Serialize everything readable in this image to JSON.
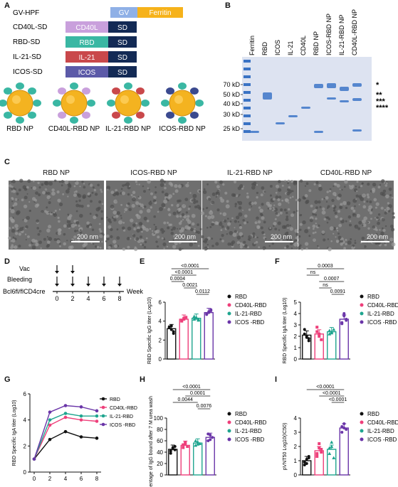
{
  "panel_labels": {
    "a": "A",
    "b": "B",
    "c": "C",
    "d": "D",
    "e": "E",
    "f": "F",
    "g": "G",
    "h": "H",
    "i": "I"
  },
  "constructs": [
    {
      "label": "GV-HPF",
      "segments": [
        {
          "text": "GV",
          "color": "#8fb0e6"
        },
        {
          "text": "Ferritin",
          "color": "#f6b21a"
        }
      ]
    },
    {
      "label": "CD40L-SD",
      "segments": [
        {
          "text": "CD40L",
          "color": "#c9a0dc"
        },
        {
          "text": "SD",
          "color": "#132a55"
        }
      ]
    },
    {
      "label": "RBD-SD",
      "segments": [
        {
          "text": "RBD",
          "color": "#3ab7a3"
        },
        {
          "text": "SD",
          "color": "#132a55"
        }
      ]
    },
    {
      "label": "IL-21-SD",
      "segments": [
        {
          "text": "IL-21",
          "color": "#c9484b"
        },
        {
          "text": "SD",
          "color": "#132a55"
        }
      ]
    },
    {
      "label": "ICOS-SD",
      "segments": [
        {
          "text": "ICOS",
          "color": "#5c5aa8"
        },
        {
          "text": "SD",
          "color": "#132a55"
        }
      ]
    }
  ],
  "nanoparticles": [
    {
      "label": "RBD NP",
      "petal_a": "#3ab7a3",
      "petal_b": "#3ab7a3"
    },
    {
      "label": "CD40L-RBD NP",
      "petal_a": "#3ab7a3",
      "petal_b": "#c9a0dc"
    },
    {
      "label": "IL-21-RBD NP",
      "petal_a": "#3ab7a3",
      "petal_b": "#c9484b"
    },
    {
      "label": "ICOS-RBD NP",
      "petal_a": "#3ab7a3",
      "petal_b": "#3b4a8f"
    }
  ],
  "gel": {
    "lanes": [
      "Ferritin",
      "RBD",
      "ICOS",
      "IL-21",
      "CD40L",
      "RBD NP",
      "ICOS-RBD NP",
      "IL-21-RBD NP",
      "CD40L-RBD NP"
    ],
    "markers": [
      "70 kD",
      "50 kD",
      "40 kD",
      "30 kD",
      "25 kD"
    ],
    "stars": [
      "*",
      "**",
      "***",
      "****"
    ]
  },
  "micrographs": [
    {
      "title": "RBD NP",
      "scale": "200 nm"
    },
    {
      "title": "ICOS-RBD NP",
      "scale": "200 nm"
    },
    {
      "title": "IL-21-RBD NP",
      "scale": "200 nm"
    },
    {
      "title": "CD40L-RBD NP",
      "scale": "200 nm"
    }
  ],
  "schedule": {
    "vac": "Vac",
    "bleeding": "Bleeding",
    "mouse": "Bcl6fl/flCD4cre",
    "week": "Week",
    "ticks": [
      "0",
      "2",
      "4",
      "6",
      "8"
    ],
    "vac_weeks": [
      0,
      2
    ],
    "bleed_weeks": [
      0,
      2,
      4,
      6,
      8
    ]
  },
  "legend_groups": [
    "RBD",
    "CD40L-RBD",
    "IL-21-RBD",
    "ICOS -RBD"
  ],
  "group_colors": [
    "#111111",
    "#ee3f7a",
    "#1fa58f",
    "#6a35a8"
  ],
  "chart_data": [
    {
      "panel": "E",
      "type": "bar",
      "ylabel": "RBD Specific IgG titer (Log10)",
      "ylim": [
        0,
        6
      ],
      "yticks": [
        0,
        2,
        4,
        6
      ],
      "categories": [
        "RBD",
        "CD40L-RBD",
        "IL-21-RBD",
        "ICOS -RBD"
      ],
      "values": [
        3.2,
        4.2,
        4.3,
        4.9
      ],
      "points": [
        [
          3.4,
          3.1,
          2.7,
          3.3,
          3.5,
          2.9
        ],
        [
          4.0,
          4.2,
          4.4,
          4.1,
          4.3
        ],
        [
          4.2,
          4.4,
          4.1,
          4.5,
          4.3,
          4.2
        ],
        [
          4.8,
          5.0,
          5.2,
          4.7,
          4.9,
          5.1
        ]
      ],
      "comparisons": [
        {
          "from": 0,
          "to": 3,
          "p": "<0.0001"
        },
        {
          "from": 0,
          "to": 2,
          "p": "<0.0001"
        },
        {
          "from": 0,
          "to": 1,
          "p": "0.0004"
        },
        {
          "from": 1,
          "to": 2,
          "p": "0.0021"
        },
        {
          "from": 2,
          "to": 3,
          "p": "0.0112"
        }
      ]
    },
    {
      "panel": "F",
      "type": "bar",
      "ylabel": "RBD Specific IgA titer (Log10)",
      "ylim": [
        0,
        5
      ],
      "yticks": [
        0,
        1,
        2,
        3,
        4,
        5
      ],
      "categories": [
        "RBD",
        "CD40L-RBD",
        "IL-21-RBD",
        "ICOS -RBD"
      ],
      "values": [
        2.1,
        2.2,
        2.4,
        3.5
      ],
      "points": [
        [
          2.6,
          1.9,
          1.6,
          2.2,
          2.0,
          1.8
        ],
        [
          2.8,
          2.2,
          1.7,
          2.4,
          2.0
        ],
        [
          2.5,
          2.3,
          2.6,
          2.2,
          2.4
        ],
        [
          3.2,
          4.0,
          3.5,
          3.1,
          3.8,
          3.4
        ]
      ],
      "comparisons": [
        {
          "from": 0,
          "to": 3,
          "p": "0.0003"
        },
        {
          "from": 0,
          "to": 1,
          "p": "ns"
        },
        {
          "from": 1,
          "to": 3,
          "p": "0.0007"
        },
        {
          "from": 1,
          "to": 2,
          "p": "ns"
        },
        {
          "from": 2,
          "to": 3,
          "p": "0.0091"
        }
      ]
    },
    {
      "panel": "G",
      "type": "line",
      "ylabel": "RBD Specific IgA titer (Log10)",
      "ylim": [
        0,
        6
      ],
      "yticks": [
        0,
        2,
        4,
        6
      ],
      "xticks": [
        0,
        2,
        4,
        6,
        8
      ],
      "x": [
        0,
        2,
        4,
        6,
        8
      ],
      "series": [
        {
          "name": "RBD",
          "values": [
            1.0,
            2.5,
            3.1,
            2.7,
            2.6
          ]
        },
        {
          "name": "CD40L-RBD",
          "values": [
            1.0,
            3.6,
            4.2,
            4.0,
            3.9
          ]
        },
        {
          "name": "IL-21-RBD",
          "values": [
            1.0,
            4.0,
            4.5,
            4.3,
            4.3
          ]
        },
        {
          "name": "ICOS -RBD",
          "values": [
            1.0,
            4.6,
            5.1,
            5.0,
            4.7
          ]
        }
      ]
    },
    {
      "panel": "H",
      "type": "bar",
      "ylabel": "Percentage of IgG bound after 7 M urea wash",
      "ylim": [
        0,
        100
      ],
      "yticks": [
        0,
        20,
        40,
        60,
        80,
        100
      ],
      "categories": [
        "RBD",
        "CD40L-RBD",
        "IL-21-RBD",
        "ICOS -RBD"
      ],
      "values": [
        45,
        52,
        56,
        66
      ],
      "points": [
        [
          38,
          46,
          50,
          42,
          48,
          44
        ],
        [
          48,
          55,
          50,
          53,
          57
        ],
        [
          52,
          58,
          55,
          60,
          54
        ],
        [
          60,
          70,
          66,
          72,
          62
        ]
      ],
      "comparisons": [
        {
          "from": 0,
          "to": 3,
          "p": "<0.0001"
        },
        {
          "from": 1,
          "to": 3,
          "p": "0.0001"
        },
        {
          "from": 0,
          "to": 2,
          "p": "0.0044"
        },
        {
          "from": 2,
          "to": 3,
          "p": "0.0076"
        }
      ]
    },
    {
      "panel": "I",
      "type": "bar",
      "ylabel": "pVNT50 Log10(IC50)",
      "ylim": [
        0,
        4
      ],
      "yticks": [
        0,
        1,
        2,
        3,
        4
      ],
      "categories": [
        "RBD",
        "CD40L-RBD",
        "IL-21-RBD",
        "ICOS -RBD"
      ],
      "values": [
        1.0,
        1.7,
        1.8,
        3.3
      ],
      "points": [
        [
          0.7,
          1.1,
          1.3,
          0.9,
          0.8,
          1.2
        ],
        [
          1.3,
          2.2,
          1.6,
          1.5,
          1.9,
          1.8
        ],
        [
          1.5,
          2.3,
          1.2,
          1.9,
          2.0
        ],
        [
          3.0,
          3.6,
          3.2,
          3.4,
          3.3
        ]
      ],
      "comparisons": [
        {
          "from": 0,
          "to": 3,
          "p": "<0.0001"
        },
        {
          "from": 1,
          "to": 3,
          "p": "<0.0001"
        },
        {
          "from": 2,
          "to": 3,
          "p": "<0.0001"
        }
      ]
    }
  ]
}
